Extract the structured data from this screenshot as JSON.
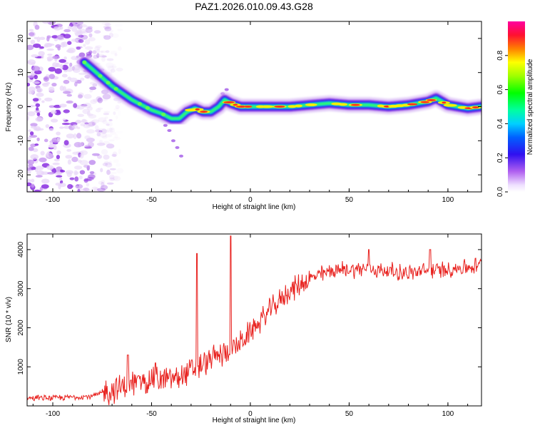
{
  "figure_title": "PAZ1.2026.010.09.43.G28",
  "chart_data": [
    {
      "type": "heatmap",
      "title": "",
      "xlabel": "Height of straight line (km)",
      "ylabel": "Frequency (Hz)",
      "xlim": [
        -113,
        117
      ],
      "ylim": [
        -25,
        25
      ],
      "x_ticks": [
        -100,
        -50,
        0,
        50,
        100
      ],
      "y_ticks": [
        -20,
        -10,
        0,
        10,
        20
      ],
      "colorbar": {
        "label": "Normalized spectral amplitude",
        "range": [
          0,
          1
        ],
        "ticks": [
          0.0,
          0.2,
          0.4,
          0.6,
          0.8
        ]
      },
      "ridge": {
        "description": "Dominant frequency ridge (x km, frequency Hz)",
        "points": [
          [
            -84,
            13
          ],
          [
            -80,
            11
          ],
          [
            -75,
            8.5
          ],
          [
            -70,
            6
          ],
          [
            -65,
            4
          ],
          [
            -60,
            2
          ],
          [
            -55,
            0.5
          ],
          [
            -50,
            -1
          ],
          [
            -45,
            -2
          ],
          [
            -40,
            -3.5
          ],
          [
            -36,
            -3.5
          ],
          [
            -32,
            -1.5
          ],
          [
            -28,
            -0.5
          ],
          [
            -24,
            -1.5
          ],
          [
            -20,
            -1.5
          ],
          [
            -16,
            0
          ],
          [
            -13,
            2
          ],
          [
            -10,
            1
          ],
          [
            -5,
            0
          ],
          [
            0,
            0
          ],
          [
            10,
            0
          ],
          [
            20,
            0
          ],
          [
            30,
            0.5
          ],
          [
            40,
            1
          ],
          [
            50,
            0.5
          ],
          [
            60,
            0.5
          ],
          [
            70,
            0
          ],
          [
            80,
            0.5
          ],
          [
            90,
            1.5
          ],
          [
            94,
            2.5
          ],
          [
            100,
            0.5
          ],
          [
            110,
            -0.5
          ],
          [
            117,
            0
          ]
        ]
      },
      "noise_region": {
        "x_from": -113,
        "x_to": -70,
        "description": "diffuse low-amplitude noise across all frequencies"
      }
    },
    {
      "type": "line",
      "title": "",
      "xlabel": "Height of straight line (km)",
      "ylabel": "SNR (10 * v/v)",
      "xlim": [
        -113,
        117
      ],
      "ylim": [
        0,
        4400
      ],
      "x_ticks": [
        -100,
        -50,
        0,
        50,
        100
      ],
      "y_ticks": [
        1000,
        2000,
        3000,
        4000
      ],
      "series": [
        {
          "name": "SNR",
          "color": "#e8211e",
          "x": [
            -113,
            -100,
            -80,
            -70,
            -60,
            -55,
            -50,
            -45,
            -40,
            -35,
            -30,
            -25,
            -20,
            -15,
            -10,
            -5,
            0,
            10,
            20,
            30,
            40,
            50,
            60,
            70,
            80,
            90,
            100,
            110,
            117
          ],
          "y": [
            200,
            200,
            250,
            400,
            550,
            650,
            700,
            650,
            700,
            750,
            900,
            1000,
            1200,
            1300,
            1450,
            1600,
            1900,
            2450,
            2950,
            3250,
            3450,
            3500,
            3500,
            3450,
            3400,
            3450,
            3500,
            3550,
            3600
          ],
          "spikes": [
            [
              -27,
              3900
            ],
            [
              -10,
              4350
            ],
            [
              -62,
              1300
            ],
            [
              -48,
              1100
            ],
            [
              60,
              4000
            ],
            [
              91,
              4000
            ]
          ]
        }
      ]
    }
  ],
  "colors": {
    "line": "#e8211e",
    "axis": "#000000",
    "background": "#ffffff"
  }
}
